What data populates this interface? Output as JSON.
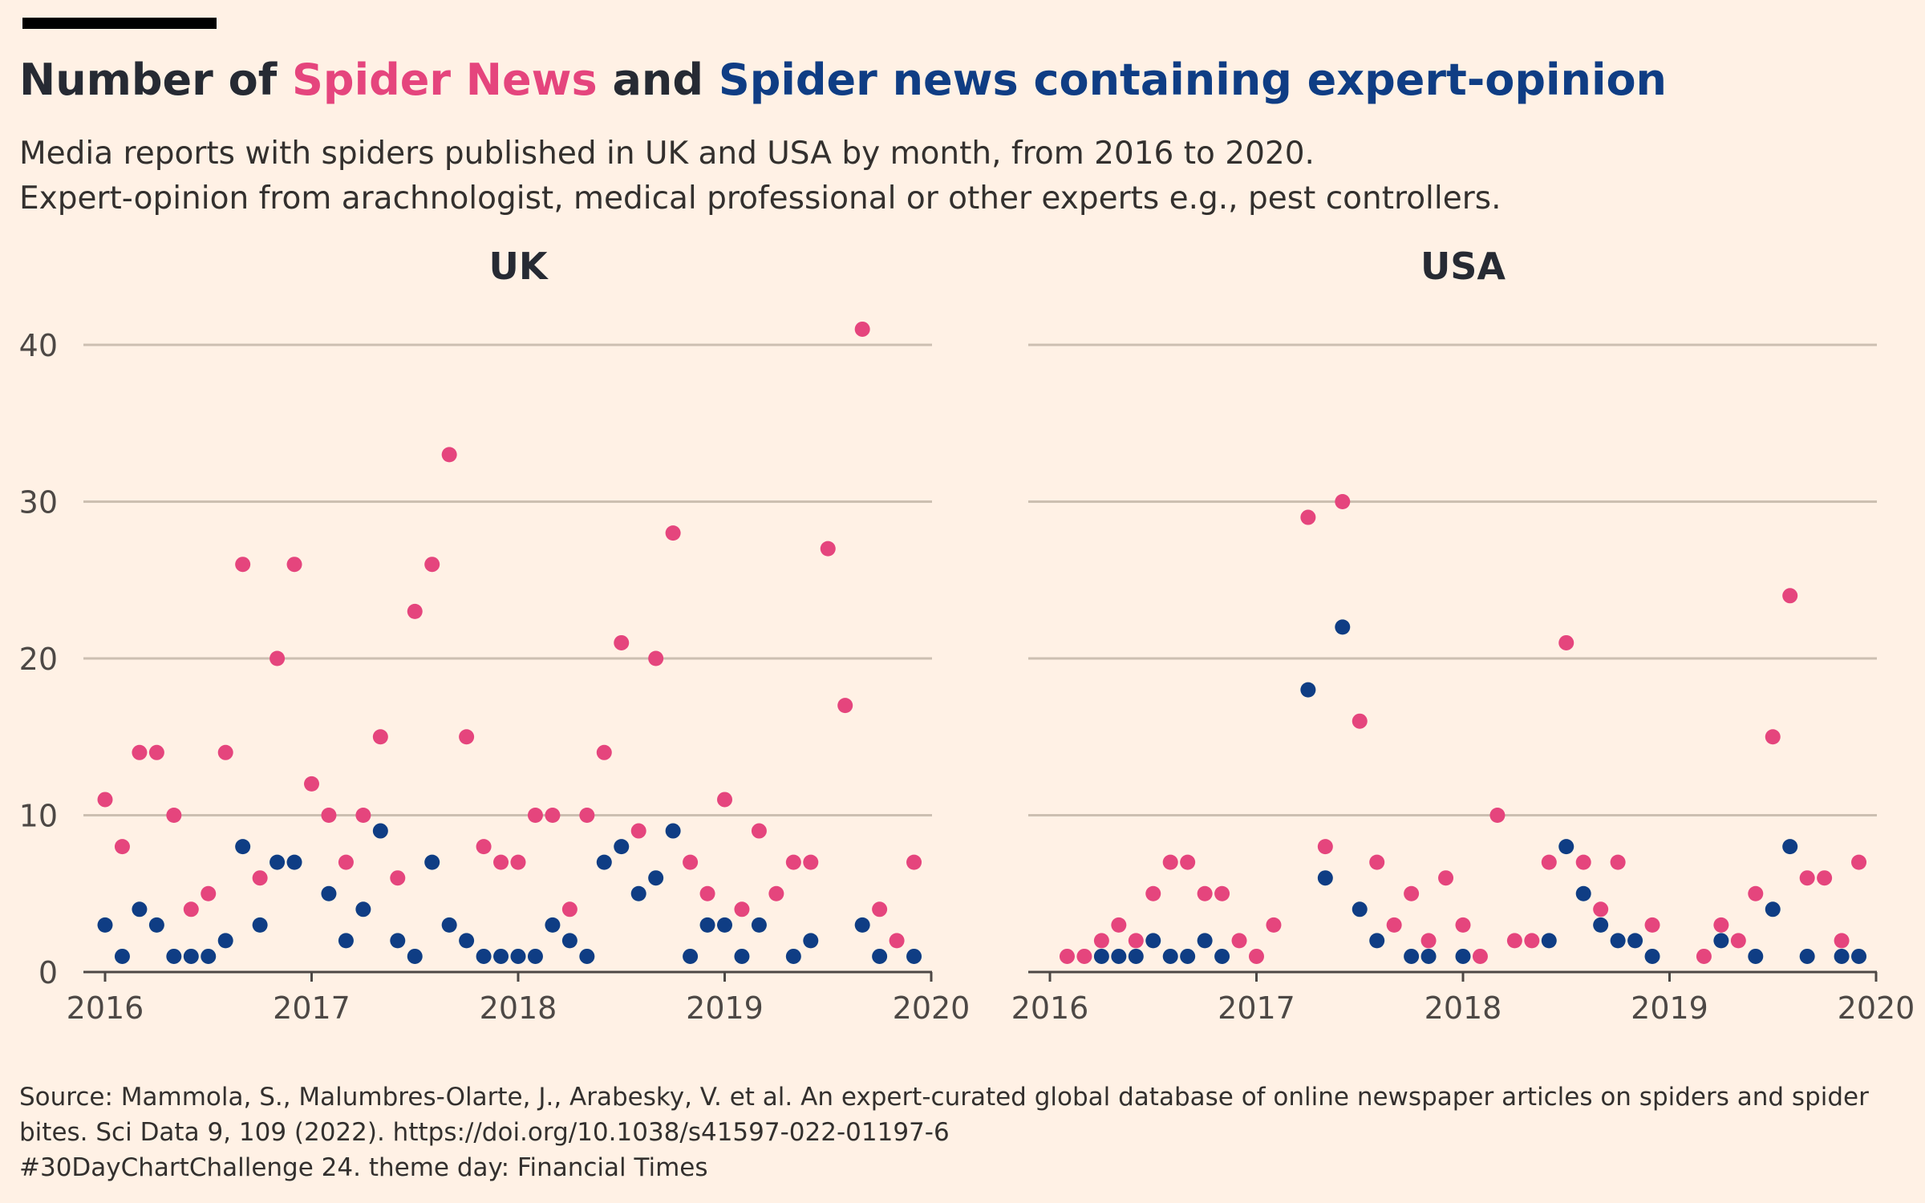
{
  "header": {
    "title_prefix": "Number of",
    "title_series_all": "Spider News",
    "title_and": "and",
    "title_series_expert": "Spider news containing expert-opinion",
    "subtitle_line1": "Media reports with spiders published in UK and USA by month, from 2016 to 2020.",
    "subtitle_line2": "Expert-opinion from arachnologist, medical professional or other experts e.g., pest controllers."
  },
  "footer": {
    "source_line1": "Source: Mammola, S., Malumbres-Olarte, J., Arabesky, V. et al. An expert-curated global database of online newspaper articles on spiders and spider",
    "source_line2": "bites. Sci Data 9, 109 (2022). https://doi.org/10.1038/s41597-022-01197-6",
    "challenge_line": "#30DayChartChallenge 24. theme day: Financial Times"
  },
  "colors": {
    "background": "#fff1e5",
    "all_news": "#e5457d",
    "expert_news": "#0f3d84",
    "gridline": "#ccbfb1",
    "text": "#262a33"
  },
  "chart_data": [
    {
      "type": "scatter",
      "title": "UK",
      "xlim": [
        2016,
        2020
      ],
      "ylim": [
        0,
        41
      ],
      "x_ticks": [
        "2016",
        "2017",
        "2018",
        "2019",
        "2020"
      ],
      "y_ticks": [
        "0",
        "10",
        "20",
        "30",
        "40"
      ],
      "grid": true,
      "series": [
        {
          "name": "Spider News",
          "x": [
            "2016-01",
            "2016-02",
            "2016-03",
            "2016-04",
            "2016-05",
            "2016-06",
            "2016-07",
            "2016-08",
            "2016-09",
            "2016-10",
            "2016-11",
            "2016-12",
            "2017-01",
            "2017-02",
            "2017-03",
            "2017-04",
            "2017-05",
            "2017-06",
            "2017-07",
            "2017-08",
            "2017-09",
            "2017-10",
            "2017-11",
            "2017-12",
            "2018-01",
            "2018-02",
            "2018-03",
            "2018-04",
            "2018-05",
            "2018-06",
            "2018-07",
            "2018-08",
            "2018-09",
            "2018-10",
            "2018-11",
            "2018-12",
            "2019-01",
            "2019-02",
            "2019-03",
            "2019-04",
            "2019-05",
            "2019-06",
            "2019-07",
            "2019-08",
            "2019-09",
            "2019-10",
            "2019-11",
            "2019-12"
          ],
          "y": [
            11,
            8,
            14,
            14,
            10,
            4,
            5,
            14,
            26,
            6,
            20,
            26,
            12,
            10,
            7,
            10,
            15,
            6,
            23,
            26,
            33,
            15,
            8,
            7,
            7,
            10,
            10,
            4,
            10,
            14,
            21,
            9,
            20,
            28,
            7,
            5,
            11,
            4,
            9,
            5,
            7,
            7,
            27,
            17,
            41,
            4,
            2,
            7
          ]
        },
        {
          "name": "Spider news containing expert-opinion",
          "x": [
            "2016-01",
            "2016-02",
            "2016-03",
            "2016-04",
            "2016-05",
            "2016-06",
            "2016-07",
            "2016-08",
            "2016-09",
            "2016-10",
            "2016-11",
            "2016-12",
            "2017-02",
            "2017-03",
            "2017-04",
            "2017-05",
            "2017-06",
            "2017-07",
            "2017-08",
            "2017-09",
            "2017-10",
            "2017-11",
            "2017-12",
            "2018-01",
            "2018-02",
            "2018-03",
            "2018-04",
            "2018-05",
            "2018-06",
            "2018-07",
            "2018-08",
            "2018-09",
            "2018-10",
            "2018-11",
            "2018-12",
            "2019-01",
            "2019-02",
            "2019-03",
            "2019-05",
            "2019-06",
            "2019-09",
            "2019-10",
            "2019-12"
          ],
          "y": [
            3,
            1,
            4,
            3,
            1,
            1,
            1,
            2,
            8,
            3,
            7,
            7,
            5,
            2,
            4,
            9,
            2,
            1,
            7,
            3,
            2,
            1,
            1,
            1,
            1,
            3,
            2,
            1,
            7,
            8,
            5,
            6,
            9,
            1,
            3,
            3,
            1,
            3,
            1,
            2,
            3,
            1,
            1
          ]
        }
      ]
    },
    {
      "type": "scatter",
      "title": "USA",
      "xlim": [
        2016,
        2020
      ],
      "ylim": [
        0,
        41
      ],
      "x_ticks": [
        "2016",
        "2017",
        "2018",
        "2019",
        "2020"
      ],
      "y_ticks": [
        "0",
        "10",
        "20",
        "30",
        "40"
      ],
      "grid": true,
      "series": [
        {
          "name": "Spider News",
          "x": [
            "2016-02",
            "2016-03",
            "2016-04",
            "2016-05",
            "2016-06",
            "2016-07",
            "2016-08",
            "2016-09",
            "2016-10",
            "2016-11",
            "2016-12",
            "2017-01",
            "2017-02",
            "2017-04",
            "2017-05",
            "2017-06",
            "2017-07",
            "2017-08",
            "2017-09",
            "2017-10",
            "2017-11",
            "2017-12",
            "2018-01",
            "2018-02",
            "2018-03",
            "2018-04",
            "2018-05",
            "2018-06",
            "2018-07",
            "2018-08",
            "2018-09",
            "2018-10",
            "2018-12",
            "2019-03",
            "2019-04",
            "2019-05",
            "2019-06",
            "2019-07",
            "2019-08",
            "2019-09",
            "2019-10",
            "2019-11",
            "2019-12"
          ],
          "y": [
            1,
            1,
            2,
            3,
            2,
            5,
            7,
            7,
            5,
            5,
            2,
            1,
            3,
            29,
            8,
            30,
            16,
            7,
            3,
            5,
            2,
            6,
            3,
            1,
            10,
            2,
            2,
            7,
            21,
            7,
            4,
            7,
            3,
            1,
            3,
            2,
            5,
            15,
            24,
            6,
            6,
            2,
            7
          ]
        },
        {
          "name": "Spider news containing expert-opinion",
          "x": [
            "2016-04",
            "2016-05",
            "2016-06",
            "2016-07",
            "2016-08",
            "2016-09",
            "2016-10",
            "2016-11",
            "2017-04",
            "2017-05",
            "2017-06",
            "2017-07",
            "2017-08",
            "2017-10",
            "2017-11",
            "2018-01",
            "2018-06",
            "2018-07",
            "2018-08",
            "2018-09",
            "2018-10",
            "2018-11",
            "2018-12",
            "2019-04",
            "2019-06",
            "2019-07",
            "2019-08",
            "2019-09",
            "2019-11",
            "2019-12"
          ],
          "y": [
            1,
            1,
            1,
            2,
            1,
            1,
            2,
            1,
            18,
            6,
            22,
            4,
            2,
            1,
            1,
            1,
            2,
            8,
            5,
            3,
            2,
            2,
            1,
            2,
            1,
            4,
            8,
            1,
            1,
            1
          ]
        }
      ]
    }
  ]
}
